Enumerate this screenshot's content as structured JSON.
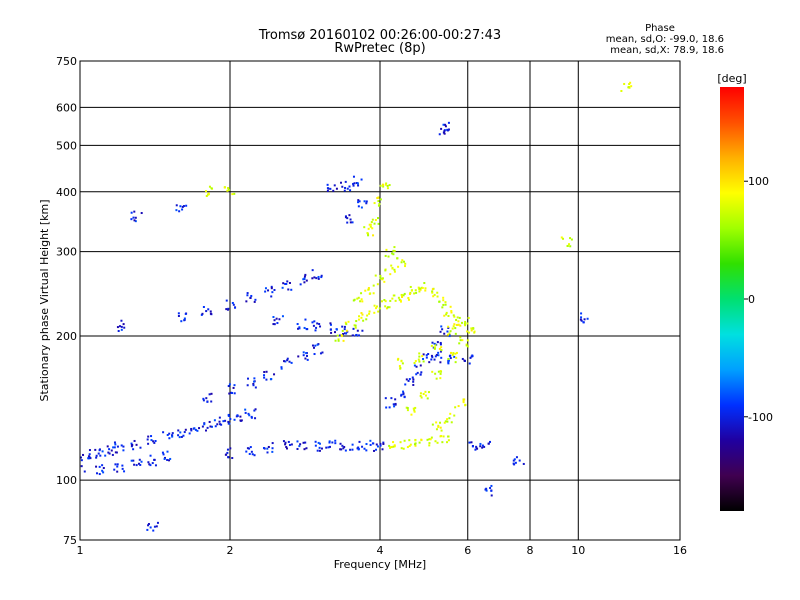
{
  "header": {
    "title_line1": "Tromsø 20160102 00:26:00-00:27:43",
    "title_line2": "RwPretec (8p)"
  },
  "phase_info": {
    "title": "Phase",
    "o_line": "mean, sd,O:  -99.0, 18.6",
    "x_line": "mean, sd,X:  78.9, 18.6"
  },
  "colorbar": {
    "unit_label": "[deg]",
    "tick_labels": [
      "100",
      "0",
      "-100"
    ],
    "tick_values": [
      100,
      0,
      -100
    ],
    "range": [
      -180,
      180
    ],
    "colors": [
      "#000000",
      "#400050",
      "#2000a0",
      "#0030ff",
      "#00a0ff",
      "#00e0e0",
      "#00e070",
      "#30e000",
      "#a0ff00",
      "#ffff00",
      "#ffb000",
      "#ff5000",
      "#ff0000"
    ]
  },
  "chart_data": {
    "type": "scatter",
    "title": "Tromsø 20160102 00:26:00-00:27:43",
    "subtitle": "RwPretec (8p)",
    "xlabel": "Frequency [MHz]",
    "ylabel": "Stationary phase Virtual Height [km]",
    "xscale": "log",
    "yscale": "log",
    "xlim": [
      1,
      16
    ],
    "ylim": [
      75,
      750
    ],
    "xticks": [
      1,
      2,
      4,
      6,
      8,
      10,
      16
    ],
    "xtick_labels": [
      "1",
      "2",
      "4",
      "6",
      "8",
      "10",
      "16"
    ],
    "yticks": [
      75,
      100,
      200,
      300,
      400,
      500,
      600,
      750
    ],
    "ytick_labels": [
      "75",
      "100",
      "200",
      "300",
      "400",
      "500",
      "600",
      "750"
    ],
    "grid": true,
    "series": [
      {
        "mode": "O",
        "phase": -99.0,
        "sd": 18.6,
        "points": [
          [
            1.0,
            112
          ],
          [
            1.05,
            113
          ],
          [
            1.1,
            114
          ],
          [
            1.15,
            115
          ],
          [
            1.2,
            117
          ],
          [
            1.3,
            119
          ],
          [
            1.4,
            121
          ],
          [
            1.5,
            123
          ],
          [
            1.6,
            126
          ],
          [
            1.7,
            128
          ],
          [
            1.8,
            130
          ],
          [
            1.9,
            132
          ],
          [
            2.0,
            134
          ],
          [
            2.1,
            136
          ],
          [
            2.2,
            138
          ],
          [
            2.0,
            114
          ],
          [
            2.2,
            115
          ],
          [
            2.4,
            117
          ],
          [
            2.6,
            118
          ],
          [
            2.8,
            119
          ],
          [
            3.0,
            118
          ],
          [
            3.2,
            118
          ],
          [
            3.4,
            118
          ],
          [
            3.6,
            118
          ],
          [
            3.8,
            118
          ],
          [
            4.0,
            118
          ],
          [
            1.0,
            105
          ],
          [
            1.1,
            105
          ],
          [
            1.2,
            106
          ],
          [
            1.3,
            108
          ],
          [
            1.4,
            110
          ],
          [
            1.5,
            112
          ],
          [
            1.8,
            148
          ],
          [
            2.0,
            155
          ],
          [
            2.2,
            160
          ],
          [
            2.4,
            165
          ],
          [
            2.6,
            175
          ],
          [
            2.8,
            182
          ],
          [
            3.0,
            188
          ],
          [
            1.6,
            220
          ],
          [
            1.8,
            225
          ],
          [
            2.0,
            232
          ],
          [
            2.2,
            240
          ],
          [
            2.4,
            248
          ],
          [
            2.6,
            255
          ],
          [
            2.8,
            262
          ],
          [
            3.0,
            268
          ],
          [
            2.5,
            215
          ],
          [
            2.8,
            212
          ],
          [
            3.0,
            210
          ],
          [
            3.2,
            208
          ],
          [
            3.4,
            205
          ],
          [
            3.6,
            202
          ],
          [
            3.6,
            420
          ],
          [
            3.4,
            410
          ],
          [
            3.2,
            405
          ],
          [
            3.7,
            380
          ],
          [
            3.5,
            350
          ],
          [
            4.2,
            145
          ],
          [
            4.4,
            150
          ],
          [
            4.6,
            160
          ],
          [
            4.8,
            170
          ],
          [
            5.0,
            180
          ],
          [
            5.2,
            190
          ],
          [
            5.4,
            205
          ],
          [
            5.2,
            180
          ],
          [
            5.6,
            178
          ],
          [
            6.0,
            178
          ],
          [
            6.2,
            118
          ],
          [
            6.5,
            118
          ],
          [
            7.6,
            110
          ],
          [
            5.4,
            530
          ],
          [
            5.5,
            545
          ],
          [
            1.2,
            210
          ],
          [
            1.3,
            355
          ],
          [
            1.6,
            370
          ],
          [
            1.4,
            80
          ],
          [
            6.6,
            95
          ],
          [
            10.2,
            218
          ]
        ]
      },
      {
        "mode": "X",
        "phase": 78.9,
        "sd": 18.6,
        "points": [
          [
            3.3,
            200
          ],
          [
            3.5,
            210
          ],
          [
            3.7,
            220
          ],
          [
            3.9,
            228
          ],
          [
            4.1,
            233
          ],
          [
            4.3,
            238
          ],
          [
            4.5,
            243
          ],
          [
            4.7,
            248
          ],
          [
            4.9,
            252
          ],
          [
            5.1,
            245
          ],
          [
            5.3,
            235
          ],
          [
            5.5,
            225
          ],
          [
            5.7,
            215
          ],
          [
            3.6,
            240
          ],
          [
            3.8,
            250
          ],
          [
            4.0,
            262
          ],
          [
            4.2,
            275
          ],
          [
            4.4,
            285
          ],
          [
            3.8,
            330
          ],
          [
            3.9,
            350
          ],
          [
            4.0,
            380
          ],
          [
            4.1,
            410
          ],
          [
            4.2,
            300
          ],
          [
            4.2,
            118
          ],
          [
            4.5,
            119
          ],
          [
            4.8,
            120
          ],
          [
            5.1,
            121
          ],
          [
            5.4,
            122
          ],
          [
            4.6,
            140
          ],
          [
            4.9,
            150
          ],
          [
            5.2,
            165
          ],
          [
            5.6,
            180
          ],
          [
            5.9,
            195
          ],
          [
            6.1,
            205
          ],
          [
            4.4,
            175
          ],
          [
            4.8,
            180
          ],
          [
            5.2,
            190
          ],
          [
            5.6,
            205
          ],
          [
            5.9,
            215
          ],
          [
            5.2,
            130
          ],
          [
            5.5,
            135
          ],
          [
            5.8,
            145
          ],
          [
            1.8,
            400
          ],
          [
            2.0,
            402
          ],
          [
            9.5,
            315
          ],
          [
            12.5,
            660
          ]
        ]
      }
    ]
  }
}
